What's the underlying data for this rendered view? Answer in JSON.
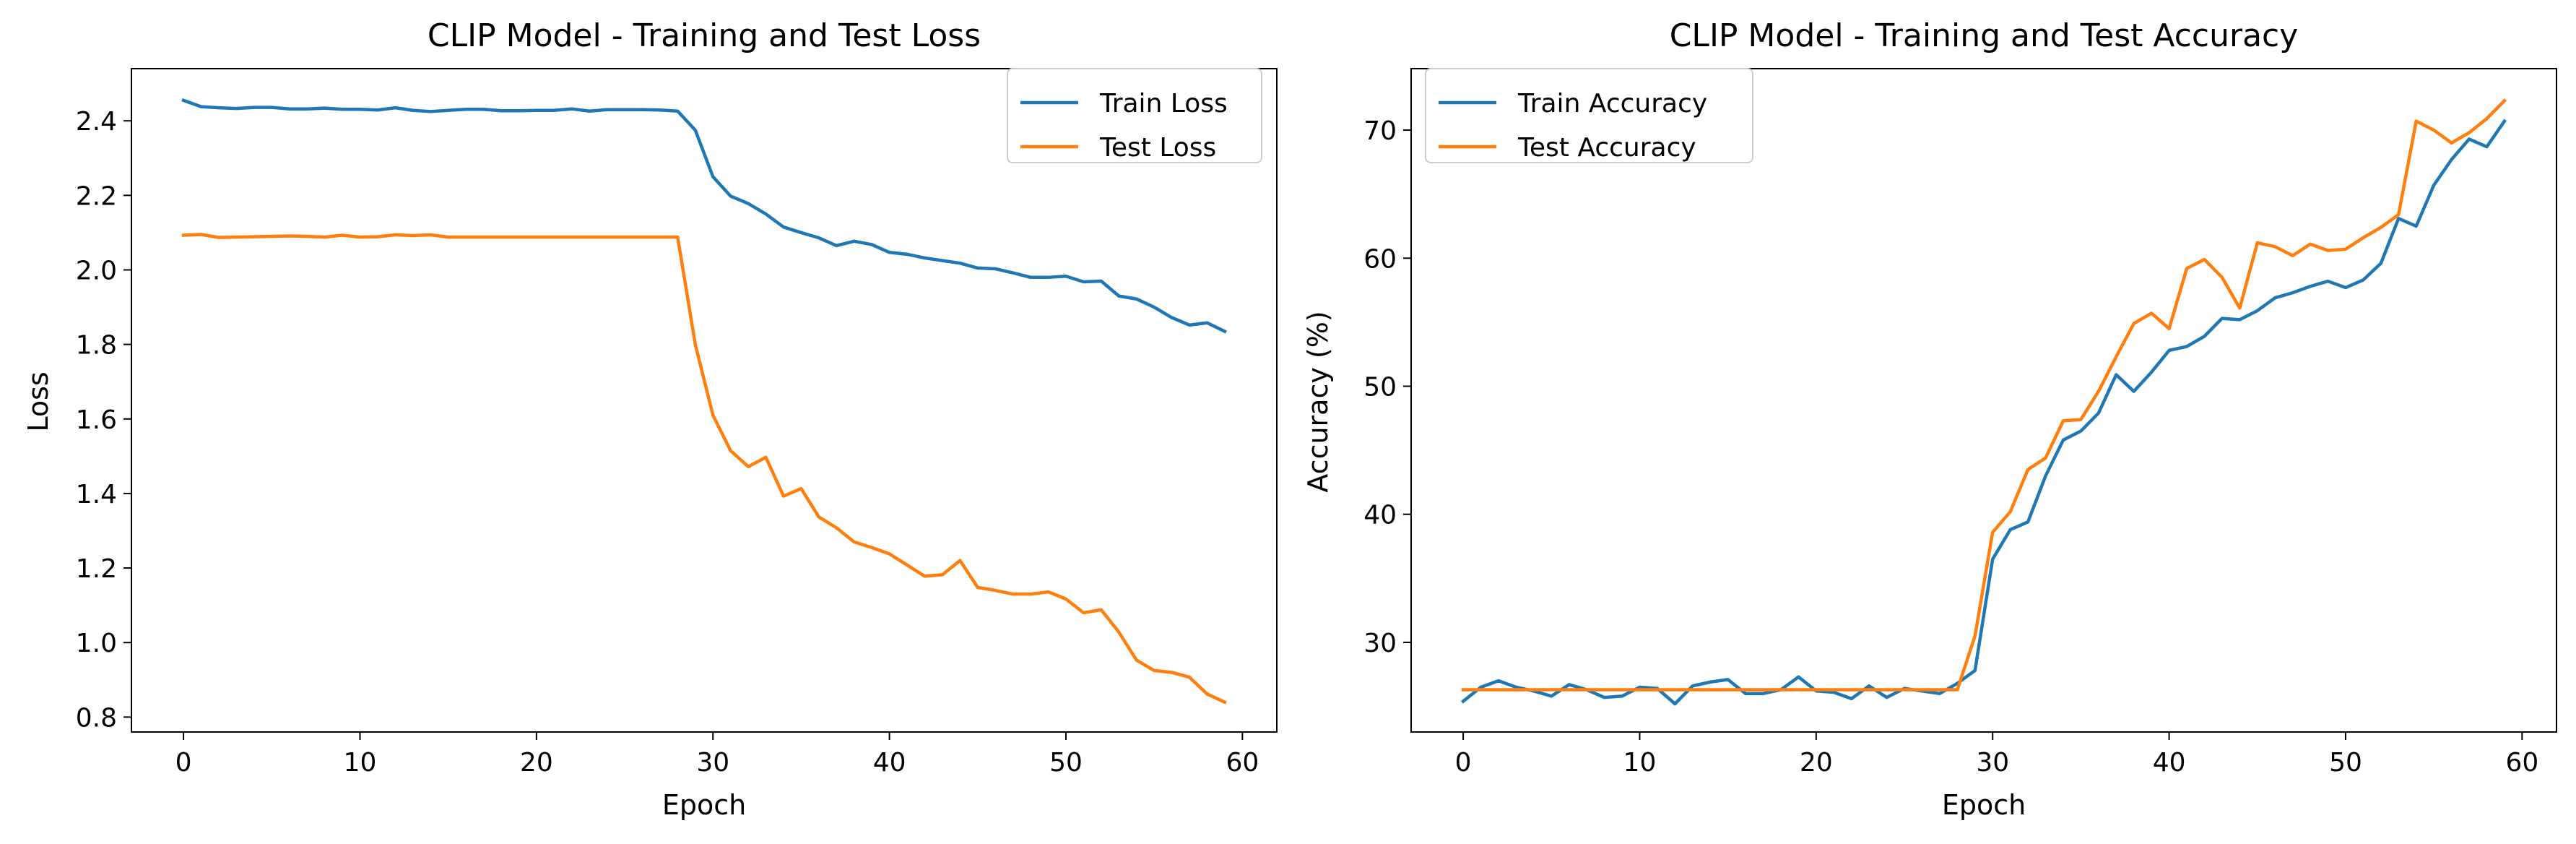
{
  "chart_data": [
    {
      "type": "line",
      "title": "CLIP Model - Training and Test Loss",
      "xlabel": "Epoch",
      "ylabel": "Loss",
      "xlim": [
        -2.95,
        61.95
      ],
      "ylim": [
        0.76,
        2.54
      ],
      "xticks": [
        0,
        10,
        20,
        30,
        40,
        50,
        60
      ],
      "xtick_labels": [
        "0",
        "10",
        "20",
        "30",
        "40",
        "50",
        "60"
      ],
      "yticks": [
        0.8,
        1.0,
        1.2,
        1.4,
        1.6,
        1.8,
        2.0,
        2.2,
        2.4
      ],
      "ytick_labels": [
        "0.8",
        "1.0",
        "1.2",
        "1.4",
        "1.6",
        "1.8",
        "2.0",
        "2.2",
        "2.4"
      ],
      "grid": false,
      "legend_position": "upper right",
      "x": [
        0,
        1,
        2,
        3,
        4,
        5,
        6,
        7,
        8,
        9,
        10,
        11,
        12,
        13,
        14,
        15,
        16,
        17,
        18,
        19,
        20,
        21,
        22,
        23,
        24,
        25,
        26,
        27,
        28,
        29,
        30,
        31,
        32,
        33,
        34,
        35,
        36,
        37,
        38,
        39,
        40,
        41,
        42,
        43,
        44,
        45,
        46,
        47,
        48,
        49,
        50,
        51,
        52,
        53,
        54,
        55,
        56,
        57,
        58,
        59
      ],
      "series": [
        {
          "name": "Train Loss",
          "color": "#1f77b4",
          "values": [
            2.455,
            2.438,
            2.435,
            2.433,
            2.436,
            2.436,
            2.432,
            2.432,
            2.434,
            2.431,
            2.431,
            2.429,
            2.435,
            2.428,
            2.425,
            2.428,
            2.431,
            2.431,
            2.427,
            2.427,
            2.428,
            2.428,
            2.432,
            2.426,
            2.43,
            2.43,
            2.43,
            2.429,
            2.426,
            2.375,
            2.25,
            2.198,
            2.178,
            2.15,
            2.115,
            2.1,
            2.086,
            2.065,
            2.077,
            2.068,
            2.047,
            2.042,
            2.032,
            2.025,
            2.018,
            2.005,
            2.003,
            1.992,
            1.98,
            1.98,
            1.983,
            1.968,
            1.97,
            1.93,
            1.922,
            1.9,
            1.872,
            1.852,
            1.858,
            1.835
          ]
        },
        {
          "name": "Test Loss",
          "color": "#ff7f0e",
          "values": [
            2.093,
            2.095,
            2.087,
            2.088,
            2.089,
            2.09,
            2.091,
            2.09,
            2.088,
            2.093,
            2.088,
            2.089,
            2.094,
            2.092,
            2.094,
            2.088,
            2.088,
            2.088,
            2.088,
            2.088,
            2.088,
            2.088,
            2.088,
            2.088,
            2.088,
            2.088,
            2.088,
            2.088,
            2.088,
            1.8,
            1.61,
            1.515,
            1.472,
            1.497,
            1.393,
            1.413,
            1.337,
            1.308,
            1.27,
            1.255,
            1.238,
            1.208,
            1.178,
            1.182,
            1.22,
            1.148,
            1.14,
            1.13,
            1.13,
            1.136,
            1.117,
            1.08,
            1.088,
            1.028,
            0.953,
            0.925,
            0.92,
            0.907,
            0.862,
            0.84
          ]
        }
      ]
    },
    {
      "type": "line",
      "title": "CLIP Model - Training and Test Accuracy",
      "xlabel": "Epoch",
      "ylabel": "Accuracy (%)",
      "xlim": [
        -2.95,
        61.95
      ],
      "ylim": [
        23.0,
        74.8
      ],
      "xticks": [
        0,
        10,
        20,
        30,
        40,
        50,
        60
      ],
      "xtick_labels": [
        "0",
        "10",
        "20",
        "30",
        "40",
        "50",
        "60"
      ],
      "yticks": [
        30,
        40,
        50,
        60,
        70
      ],
      "ytick_labels": [
        "30",
        "40",
        "50",
        "60",
        "70"
      ],
      "grid": false,
      "legend_position": "upper left",
      "x": [
        0,
        1,
        2,
        3,
        4,
        5,
        6,
        7,
        8,
        9,
        10,
        11,
        12,
        13,
        14,
        15,
        16,
        17,
        18,
        19,
        20,
        21,
        22,
        23,
        24,
        25,
        26,
        27,
        28,
        29,
        30,
        31,
        32,
        33,
        34,
        35,
        36,
        37,
        38,
        39,
        40,
        41,
        42,
        43,
        44,
        45,
        46,
        47,
        48,
        49,
        50,
        51,
        52,
        53,
        54,
        55,
        56,
        57,
        58,
        59
      ],
      "series": [
        {
          "name": "Train Accuracy",
          "color": "#1f77b4",
          "values": [
            25.4,
            26.5,
            27.0,
            26.5,
            26.2,
            25.8,
            26.7,
            26.3,
            25.7,
            25.8,
            26.5,
            26.4,
            25.2,
            26.6,
            26.9,
            27.1,
            26.0,
            26.0,
            26.3,
            27.3,
            26.2,
            26.1,
            25.6,
            26.6,
            25.7,
            26.4,
            26.2,
            26.0,
            26.8,
            27.8,
            36.5,
            38.8,
            39.4,
            43.0,
            45.8,
            46.5,
            47.9,
            50.9,
            49.6,
            51.1,
            52.8,
            53.1,
            53.9,
            55.3,
            55.2,
            55.9,
            56.9,
            57.3,
            57.8,
            58.2,
            57.7,
            58.3,
            59.6,
            63.1,
            62.5,
            65.7,
            67.7,
            69.3,
            68.7,
            70.7
          ]
        },
        {
          "name": "Test Accuracy",
          "color": "#ff7f0e",
          "values": [
            26.3,
            26.3,
            26.3,
            26.3,
            26.3,
            26.3,
            26.3,
            26.3,
            26.3,
            26.3,
            26.3,
            26.3,
            26.3,
            26.3,
            26.3,
            26.3,
            26.3,
            26.3,
            26.3,
            26.3,
            26.3,
            26.3,
            26.3,
            26.3,
            26.3,
            26.3,
            26.3,
            26.3,
            26.3,
            30.5,
            38.6,
            40.2,
            43.5,
            44.4,
            47.3,
            47.4,
            49.6,
            52.3,
            54.9,
            55.7,
            54.5,
            59.2,
            59.9,
            58.5,
            56.1,
            61.2,
            60.9,
            60.2,
            61.1,
            60.6,
            60.7,
            61.6,
            62.4,
            63.4,
            70.7,
            70.0,
            69.0,
            69.8,
            70.9,
            72.3
          ]
        }
      ]
    }
  ]
}
